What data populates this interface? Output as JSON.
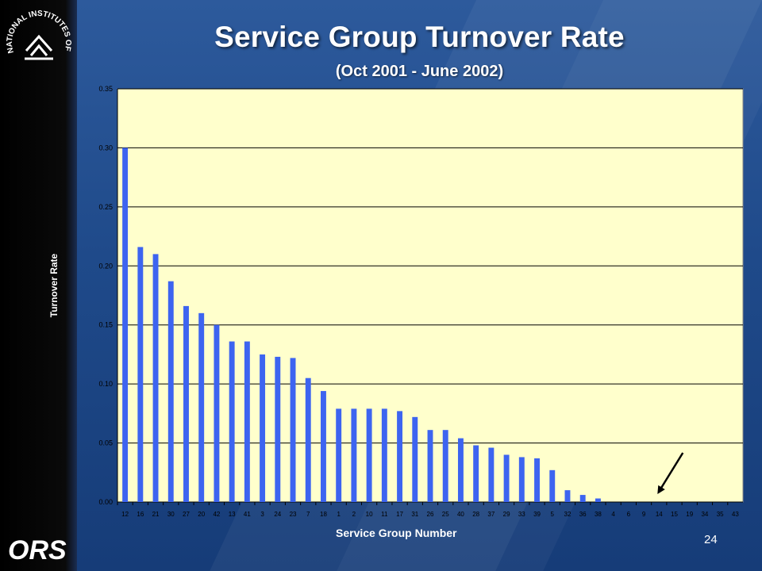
{
  "slide": {
    "title": "Service Group Turnover Rate",
    "subtitle": "(Oct 2001 - June 2002)",
    "page_number": "24",
    "logos": {
      "nih_text": "NATIONAL INSTITUTES OF HEALTH",
      "ors_text": "ORS"
    },
    "colors": {
      "background": "#1f4a8a",
      "plot_area": "#ffffcc",
      "bar": "#3d64f0",
      "sidebar": "#000000"
    }
  },
  "chart_data": {
    "type": "bar",
    "title": "Service Group Turnover Rate",
    "subtitle": "(Oct 2001 - June 2002)",
    "xlabel": "Service Group Number",
    "ylabel": "Turnover Rate",
    "ylim": [
      0,
      0.35
    ],
    "yticks": [
      "0.00",
      "0.05",
      "0.10",
      "0.15",
      "0.20",
      "0.25",
      "0.30",
      "0.35"
    ],
    "grid": true,
    "legend": "none",
    "categories": [
      "12",
      "16",
      "21",
      "30",
      "27",
      "20",
      "42",
      "13",
      "41",
      "3",
      "24",
      "23",
      "7",
      "18",
      "1",
      "2",
      "10",
      "11",
      "17",
      "31",
      "26",
      "25",
      "40",
      "28",
      "37",
      "29",
      "33",
      "39",
      "5",
      "32",
      "36",
      "38",
      "4",
      "6",
      "9",
      "14",
      "15",
      "19",
      "34",
      "35",
      "43"
    ],
    "values": [
      0.3,
      0.216,
      0.21,
      0.187,
      0.166,
      0.16,
      0.15,
      0.136,
      0.136,
      0.125,
      0.123,
      0.122,
      0.105,
      0.094,
      0.079,
      0.079,
      0.079,
      0.079,
      0.077,
      0.072,
      0.061,
      0.061,
      0.054,
      0.048,
      0.046,
      0.04,
      0.038,
      0.037,
      0.027,
      0.01,
      0.006,
      0.003,
      0,
      0,
      0,
      0,
      0,
      0,
      0,
      0,
      0
    ],
    "annotations": [
      {
        "type": "arrow",
        "points_to_category": "14"
      }
    ]
  }
}
